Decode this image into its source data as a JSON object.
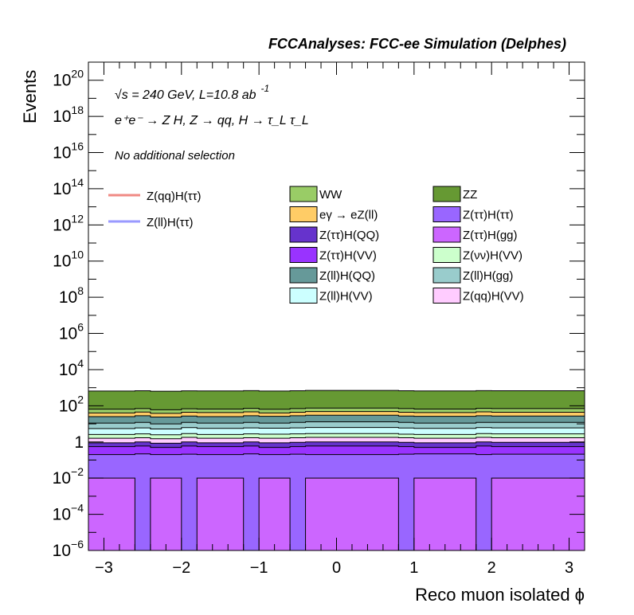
{
  "chart_data": {
    "type": "area",
    "title": "FCCAnalyses: FCC-ee Simulation (Delphes)",
    "xlabel": "Reco muon isolated ϕ",
    "ylabel": "Events",
    "yscale": "log",
    "xlim": [
      -3.2,
      3.2
    ],
    "ylim": [
      1e-06,
      1e+21
    ],
    "x_ticks": [
      "−3",
      "−2",
      "−1",
      "0",
      "1",
      "2",
      "3"
    ],
    "y_ticks": [
      {
        "base": "10",
        "exp": "−6",
        "value": 1e-06
      },
      {
        "base": "10",
        "exp": "−4",
        "value": 0.0001
      },
      {
        "base": "10",
        "exp": "−2",
        "value": 0.01
      },
      {
        "base": "1",
        "exp": "",
        "value": 1
      },
      {
        "base": "10",
        "exp": "2",
        "value": 100.0
      },
      {
        "base": "10",
        "exp": "4",
        "value": 10000.0
      },
      {
        "base": "10",
        "exp": "6",
        "value": 1000000.0
      },
      {
        "base": "10",
        "exp": "8",
        "value": 100000000.0
      },
      {
        "base": "10",
        "exp": "10",
        "value": 10000000000.0
      },
      {
        "base": "10",
        "exp": "12",
        "value": 1000000000000.0
      },
      {
        "base": "10",
        "exp": "14",
        "value": 100000000000000.0
      },
      {
        "base": "10",
        "exp": "16",
        "value": 1e+16
      },
      {
        "base": "10",
        "exp": "18",
        "value": 1e+18
      },
      {
        "base": "10",
        "exp": "20",
        "value": 1e+20
      }
    ],
    "annotations": {
      "energy_line": "√s = 240 GeV, L=10.8 ab",
      "energy_exp": "-1",
      "process_line": "e⁺e⁻ → Z H, Z → qq, H → τ_L τ_L",
      "selection_line": "No additional selection"
    },
    "signal_legend": [
      {
        "name": "Z(qq)H(ττ)",
        "color": "#f08a84"
      },
      {
        "name": "Z(ll)H(ττ)",
        "color": "#9a9aff"
      }
    ],
    "background_legend": [
      {
        "name": "WW",
        "color": "#99cc66"
      },
      {
        "name": "ZZ",
        "color": "#669933"
      },
      {
        "name": "eγ → eZ(ll)",
        "color": "#ffcc66"
      },
      {
        "name": "Z(ττ)H(ττ)",
        "color": "#9966ff"
      },
      {
        "name": "Z(ττ)H(QQ)",
        "color": "#6633cc"
      },
      {
        "name": "Z(ττ)H(gg)",
        "color": "#cc66ff"
      },
      {
        "name": "Z(ττ)H(VV)",
        "color": "#9933ff"
      },
      {
        "name": "Z(νν)H(VV)",
        "color": "#ccffcc"
      },
      {
        "name": "Z(ll)H(QQ)",
        "color": "#669999"
      },
      {
        "name": "Z(ll)H(gg)",
        "color": "#99cccc"
      },
      {
        "name": "Z(ll)H(VV)",
        "color": "#ccffff"
      },
      {
        "name": "Z(qq)H(VV)",
        "color": "#ffccff"
      }
    ],
    "stack_colors": {
      "ZZ": "#669933",
      "WW": "#99cc66",
      "eγ → eZ(ll)": "#ffcc66",
      "Z(ll)H(QQ)": "#669999",
      "Z(ll)H(gg)": "#99cccc",
      "Z(ll)H(VV)": "#ccffff",
      "Z(νν)H(VV)": "#ccffcc",
      "Z(qq)H(VV)": "#ffccff",
      "Z(ττ)H(QQ)": "#6633cc",
      "Z(ττ)H(VV)": "#9933ff",
      "Z(ττ)H(ττ)": "#9966ff",
      "Z(ττ)H(gg)": "#cc66ff"
    },
    "bins": {
      "edges": [
        -3.2,
        -2.6,
        -2.4,
        -2.0,
        -1.8,
        -1.2,
        -1.0,
        -0.6,
        -0.4,
        0.8,
        1.0,
        1.8,
        2.0,
        3.2
      ],
      "Z(ττ)H(gg)": [
        0.01,
        1e-06,
        0.01,
        1e-06,
        0.01,
        1e-06,
        0.01,
        1e-06,
        0.01,
        1e-06,
        0.01,
        1e-06,
        0.01
      ],
      "Z(ττ)H(ττ)": [
        0.2,
        0.22,
        0.2,
        0.21,
        0.2,
        0.22,
        0.2,
        0.21,
        0.2,
        0.21,
        0.22,
        0.2,
        0.21
      ],
      "Z(ττ)H(VV)": [
        0.55,
        0.6,
        0.5,
        0.6,
        0.55,
        0.6,
        0.5,
        0.55,
        0.6,
        0.55,
        0.5,
        0.6,
        0.55
      ],
      "Z(ττ)H(QQ)": [
        0.9,
        1.0,
        0.85,
        1.0,
        0.9,
        1.0,
        0.9,
        0.95,
        1.0,
        0.95,
        0.9,
        1.0,
        0.95
      ],
      "Z(qq)H(VV)": [
        1.6,
        1.7,
        1.5,
        1.8,
        1.6,
        1.7,
        1.6,
        1.7,
        1.8,
        1.7,
        1.6,
        1.8,
        1.7
      ],
      "Z(νν)H(VV)": [
        2.6,
        2.8,
        2.5,
        2.9,
        2.6,
        2.8,
        2.7,
        2.8,
        2.9,
        2.7,
        2.6,
        2.9,
        2.8
      ],
      "Z(ll)H(VV)": [
        5.5,
        6.0,
        5.2,
        6.2,
        5.6,
        6.0,
        5.8,
        6.0,
        6.3,
        5.9,
        5.6,
        6.2,
        6.0
      ],
      "Z(ll)H(gg)": [
        11,
        12,
        10,
        12,
        11,
        12,
        11,
        12,
        13,
        12,
        11,
        12,
        12
      ],
      "Z(ll)H(QQ)": [
        25,
        28,
        24,
        27,
        25,
        28,
        26,
        28,
        30,
        27,
        26,
        28,
        27
      ],
      "eγ → eZ(ll)": [
        40,
        45,
        38,
        44,
        42,
        46,
        40,
        44,
        48,
        44,
        42,
        46,
        44
      ],
      "WW": [
        65,
        70,
        60,
        68,
        66,
        72,
        64,
        70,
        75,
        70,
        66,
        72,
        70
      ],
      "ZZ": [
        650,
        680,
        640,
        670,
        660,
        690,
        650,
        680,
        700,
        680,
        660,
        690,
        680
      ]
    }
  }
}
